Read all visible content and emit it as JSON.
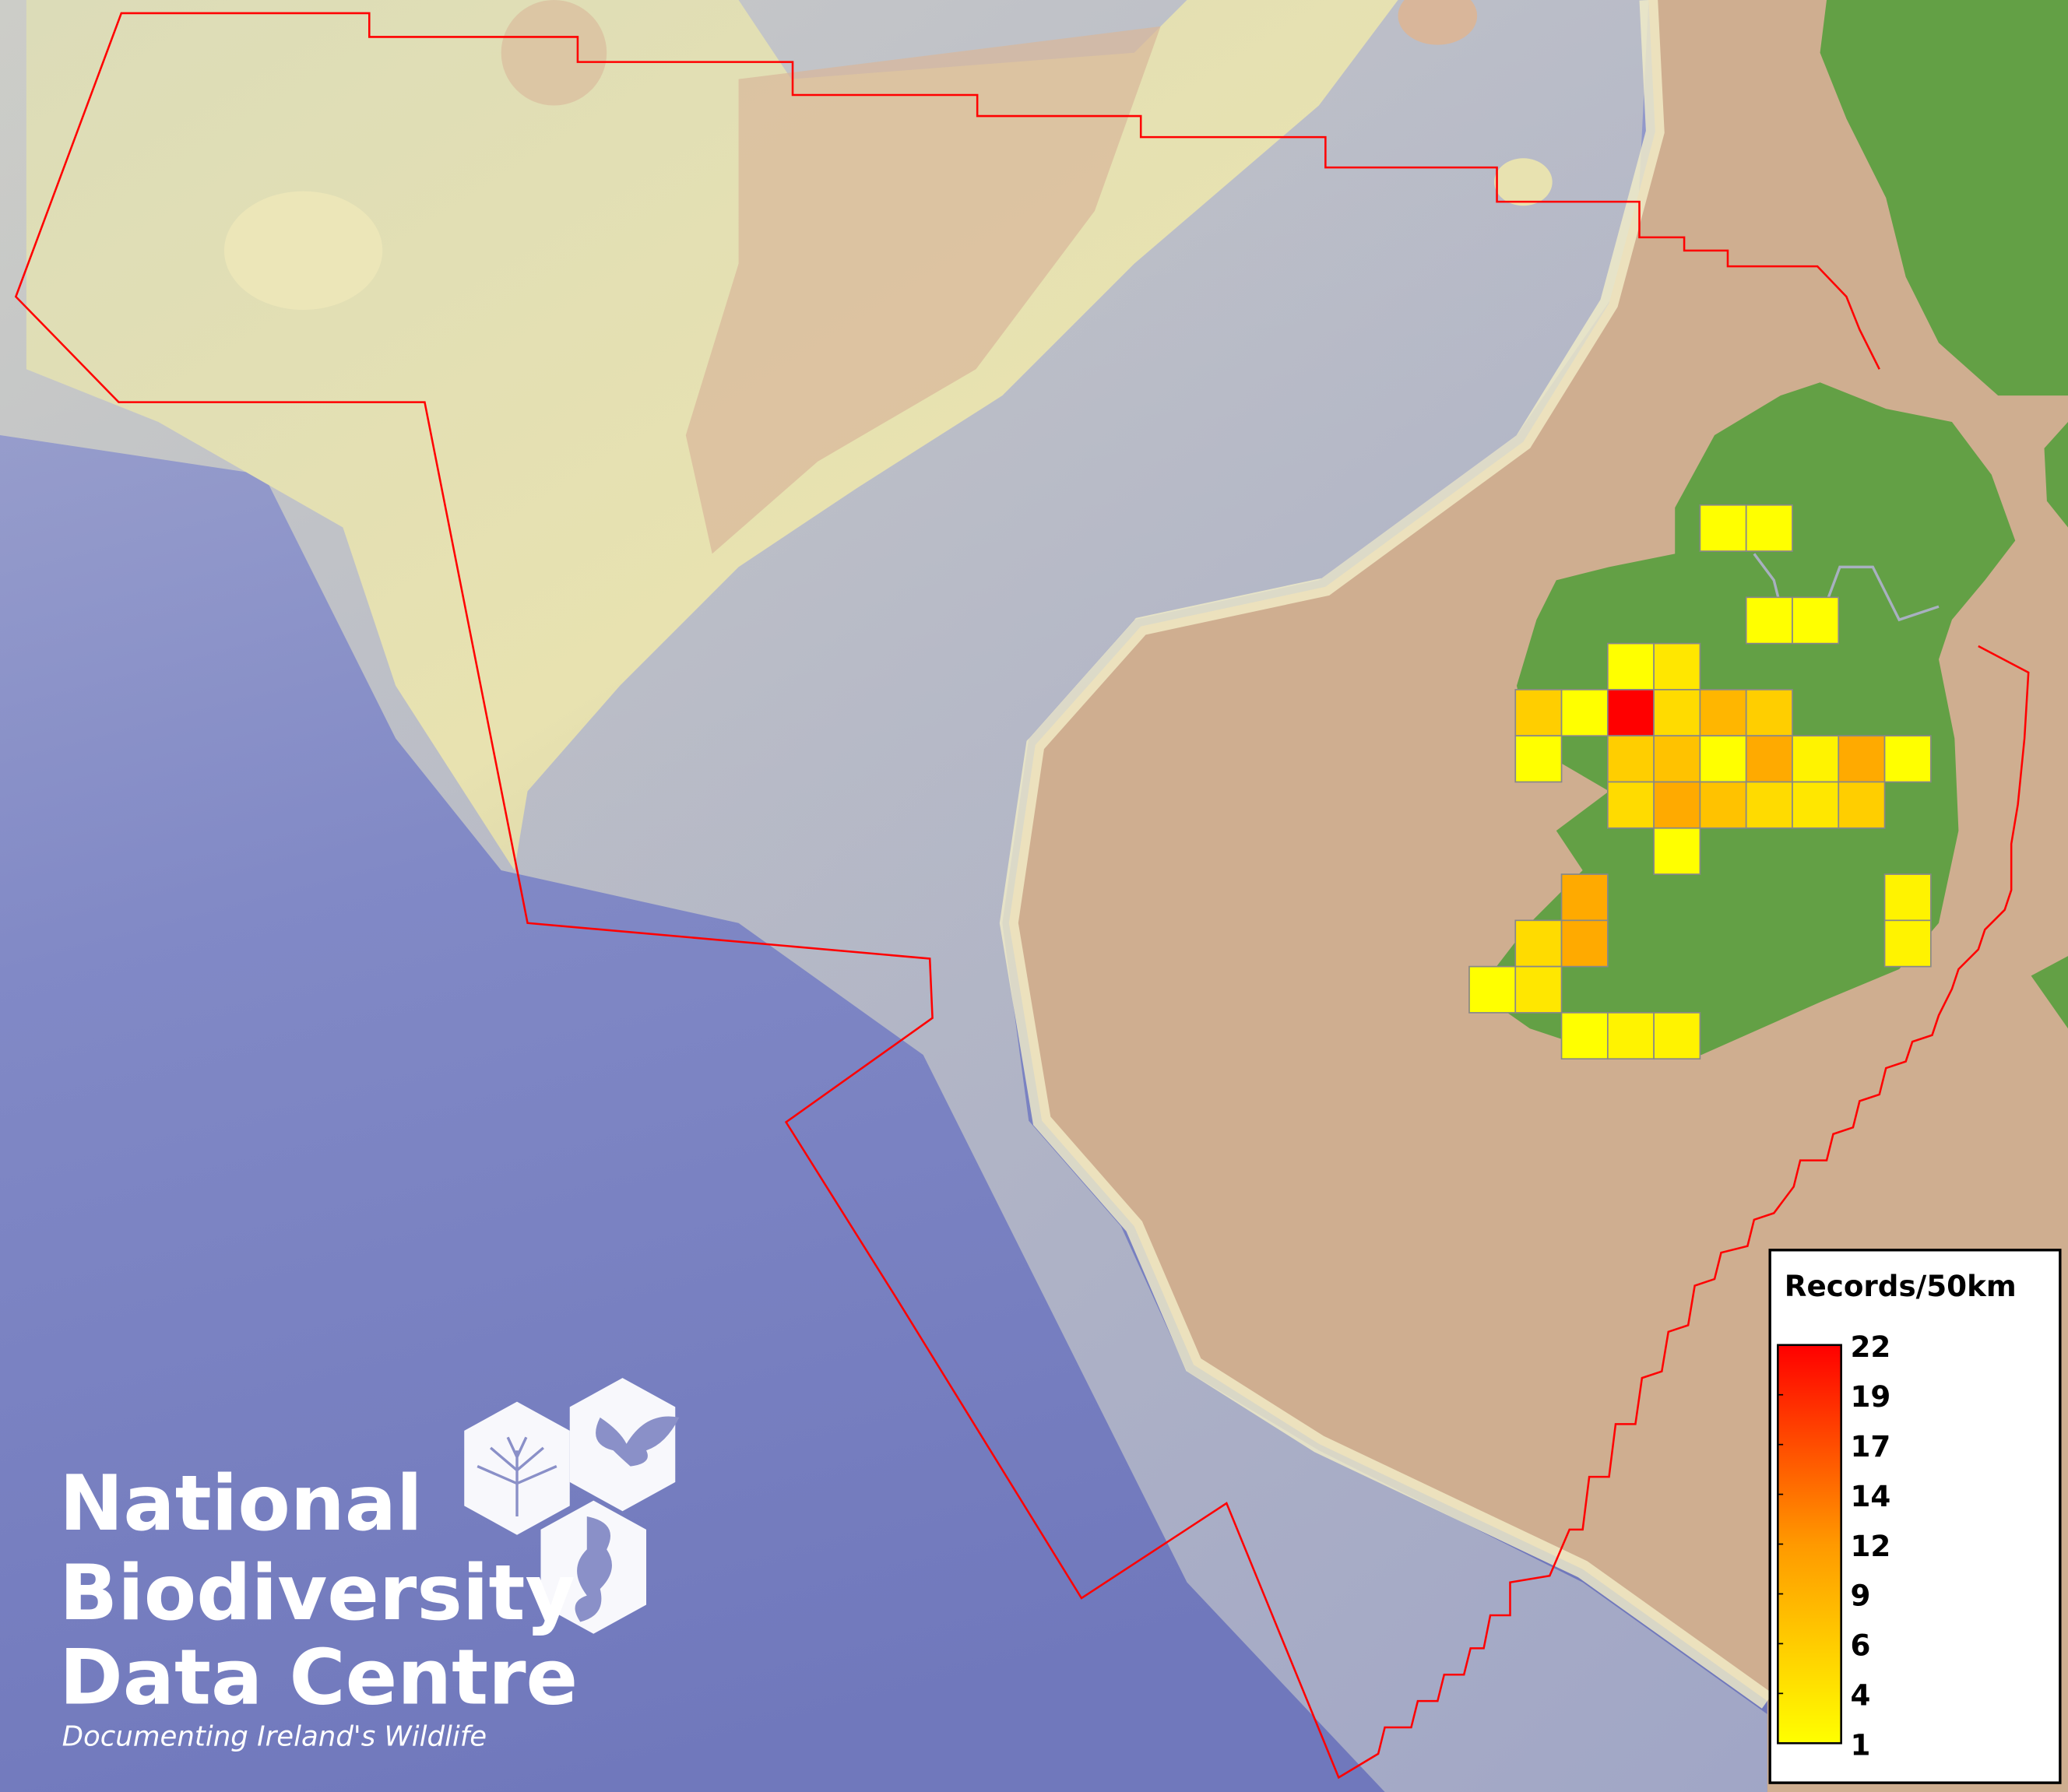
{
  "map": {
    "colors": {
      "deep_sea": "#7a82c2",
      "slope": "#b9bccc",
      "bank": "#e6e3b4",
      "shelf": "#cfae90",
      "land": "#63a045",
      "eez_boundary": "#ff0000",
      "cell_border": "#888888"
    },
    "grid": {
      "cell_size_km": 50,
      "cells": [
        {
          "row": 0,
          "col": 5,
          "value": 1
        },
        {
          "row": 0,
          "col": 6,
          "value": 1
        },
        {
          "row": 2,
          "col": 6,
          "value": 1
        },
        {
          "row": 2,
          "col": 7,
          "value": 1
        },
        {
          "row": 3,
          "col": 3,
          "value": 1
        },
        {
          "row": 3,
          "col": 4,
          "value": 3
        },
        {
          "row": 4,
          "col": 1,
          "value": 5
        },
        {
          "row": 4,
          "col": 2,
          "value": 1
        },
        {
          "row": 4,
          "col": 3,
          "value": 22
        },
        {
          "row": 4,
          "col": 4,
          "value": 4
        },
        {
          "row": 4,
          "col": 5,
          "value": 7
        },
        {
          "row": 4,
          "col": 6,
          "value": 5
        },
        {
          "row": 5,
          "col": 1,
          "value": 1
        },
        {
          "row": 5,
          "col": 3,
          "value": 5
        },
        {
          "row": 5,
          "col": 4,
          "value": 6
        },
        {
          "row": 5,
          "col": 5,
          "value": 1
        },
        {
          "row": 5,
          "col": 6,
          "value": 8
        },
        {
          "row": 5,
          "col": 7,
          "value": 2
        },
        {
          "row": 5,
          "col": 8,
          "value": 8
        },
        {
          "row": 5,
          "col": 9,
          "value": 1
        },
        {
          "row": 6,
          "col": 3,
          "value": 4
        },
        {
          "row": 6,
          "col": 4,
          "value": 8
        },
        {
          "row": 6,
          "col": 5,
          "value": 6
        },
        {
          "row": 6,
          "col": 6,
          "value": 4
        },
        {
          "row": 6,
          "col": 7,
          "value": 3
        },
        {
          "row": 6,
          "col": 8,
          "value": 5
        },
        {
          "row": 7,
          "col": 4,
          "value": 1
        },
        {
          "row": 8,
          "col": 2,
          "value": 8
        },
        {
          "row": 8,
          "col": 9,
          "value": 2
        },
        {
          "row": 9,
          "col": 1,
          "value": 4
        },
        {
          "row": 9,
          "col": 2,
          "value": 8
        },
        {
          "row": 9,
          "col": 9,
          "value": 2
        },
        {
          "row": 10,
          "col": 0,
          "value": 1
        },
        {
          "row": 10,
          "col": 1,
          "value": 3
        },
        {
          "row": 11,
          "col": 2,
          "value": 1
        },
        {
          "row": 11,
          "col": 3,
          "value": 2
        },
        {
          "row": 11,
          "col": 4,
          "value": 2
        }
      ]
    }
  },
  "legend": {
    "title": "Records/50km",
    "min": 1,
    "max": 22,
    "color_low": "#ffff00",
    "color_high": "#ff0000",
    "ticks": [
      "22",
      "19",
      "17",
      "14",
      "12",
      "9",
      "6",
      "4",
      "1"
    ]
  },
  "logo": {
    "line1": "National",
    "line2": "Biodiversity",
    "line3": "Data Centre",
    "tagline": "Documenting Ireland's Wildlife"
  }
}
